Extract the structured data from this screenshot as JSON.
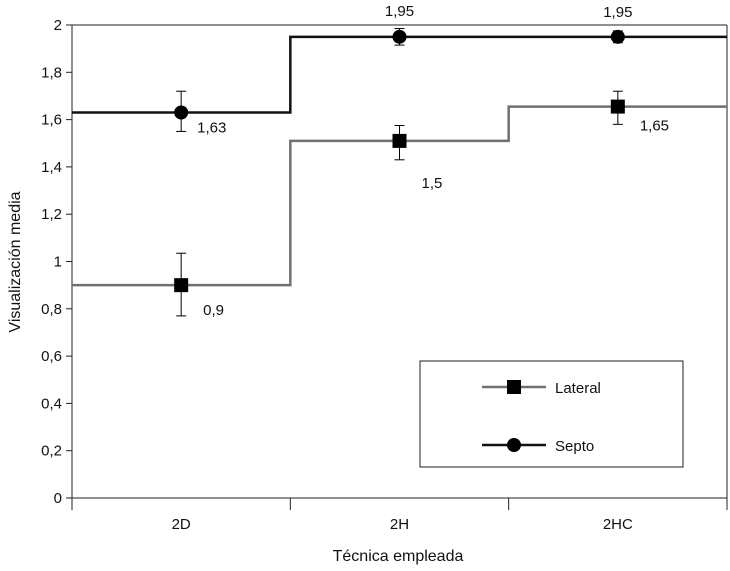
{
  "chart_data": {
    "type": "line",
    "categories": [
      "2D",
      "2H",
      "2HC"
    ],
    "xlabel": "Técnica empleada",
    "ylabel": "Visualización media",
    "ylim": [
      0,
      2
    ],
    "yticks": [
      "0",
      "0,2",
      "0,4",
      "0,6",
      "0,8",
      "1",
      "1,2",
      "1,4",
      "1,6",
      "1,8",
      "2"
    ],
    "ytick_values": [
      0,
      0.2,
      0.4,
      0.6,
      0.8,
      1.0,
      1.2,
      1.4,
      1.6,
      1.8,
      2.0
    ],
    "grid": false,
    "legend_position": "bottom-right",
    "series": [
      {
        "name": "Lateral",
        "marker": "square",
        "color": "#707070",
        "values": [
          0.9,
          1.51,
          1.655
        ],
        "error_low": [
          0.77,
          1.43,
          1.58
        ],
        "error_high": [
          1.035,
          1.575,
          1.72
        ],
        "data_labels": [
          "0,9",
          "1,5",
          "1,65"
        ]
      },
      {
        "name": "Septo",
        "marker": "circle",
        "color": "#111111",
        "values": [
          1.63,
          1.95,
          1.95
        ],
        "error_low": [
          1.55,
          1.915,
          1.925
        ],
        "error_high": [
          1.72,
          1.985,
          1.975
        ],
        "data_labels": [
          "1,63",
          "1,95",
          "1,95"
        ]
      }
    ]
  }
}
